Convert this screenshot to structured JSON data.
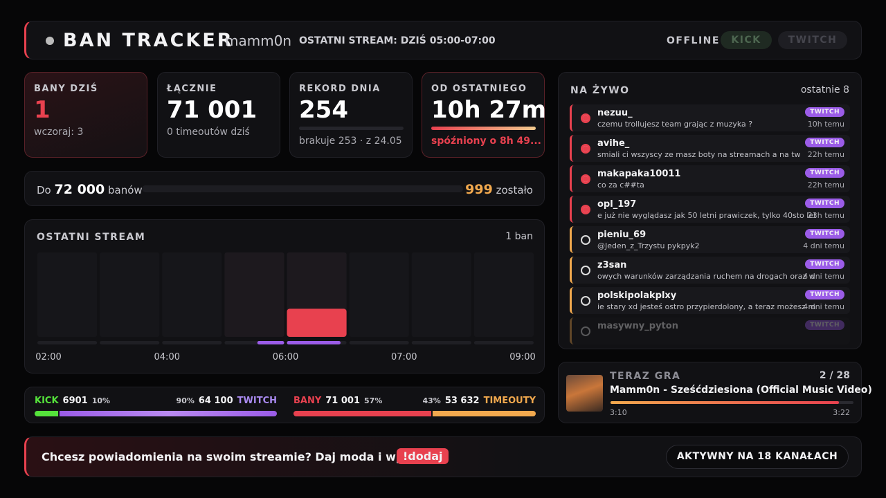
{
  "header": {
    "title": "BAN TRACKER",
    "channel": "mamm0n",
    "last_stream": "OSTATNI STREAM: DZIŚ 05:00-07:00",
    "status": "OFFLINE",
    "platforms": [
      "KICK",
      "TWITCH"
    ]
  },
  "stats": [
    {
      "label": "BANY DZIŚ",
      "value": "1",
      "sub": "wczoraj: 3"
    },
    {
      "label": "ŁĄCZNIE",
      "value": "71 001",
      "sub": "0 timeoutów dziś"
    },
    {
      "label": "REKORD DNIA",
      "value": "254",
      "sub": "brakuje 253 · z 24.05"
    },
    {
      "label": "OD OSTATNIEGO",
      "value": "10h 27m",
      "sub": "spóźniony o 8h 49..."
    }
  ],
  "goal": {
    "prefix": "Do",
    "target": "72 000",
    "unit": "banów",
    "remaining": "999",
    "remaining_label": "zostało"
  },
  "chart_data": {
    "type": "bar",
    "title": "OSTATNI STREAM",
    "summary": "1 ban",
    "values": [
      0,
      0,
      0,
      0,
      1,
      0,
      0,
      0
    ],
    "ylim": [
      0,
      3
    ],
    "x_labels": [
      "02:00",
      "04:00",
      "06:00",
      "07:00",
      "09:00"
    ],
    "color": "#e8414f"
  },
  "splits": [
    {
      "a_label": "KICK",
      "a_value": "6901",
      "a_pct": "10%",
      "b_pct": "90%",
      "b_value": "64 100",
      "b_label": "TWITCH"
    },
    {
      "a_label": "BANY",
      "a_value": "71 001",
      "a_pct": "57%",
      "b_pct": "43%",
      "b_value": "53 632",
      "b_label": "TIMEOUTY"
    }
  ],
  "feed": {
    "title": "NA ŻYWO",
    "subtitle": "ostatnie 8",
    "items": [
      {
        "kind": "ban",
        "user": "nezuu_",
        "message": "czemu trollujesz team grając z muzyka ?",
        "platform": "TWITCH",
        "time": "10h temu"
      },
      {
        "kind": "ban",
        "user": "avihe_",
        "message": "smiali ci wszyscy ze masz boty na streamach a na tw",
        "platform": "TWITCH",
        "time": "22h temu"
      },
      {
        "kind": "ban",
        "user": "makapaka10011",
        "message": "co za c##ta",
        "platform": "TWITCH",
        "time": "22h temu"
      },
      {
        "kind": "ban",
        "user": "opl_197",
        "message": "e już nie wyglądasz jak 50 letni prawiczek, tylko 40sto let",
        "platform": "TWITCH",
        "time": "23h temu"
      },
      {
        "kind": "timeout",
        "user": "pieniu_69",
        "message": "@Jeden_z_Trzystu pykpyk2",
        "platform": "TWITCH",
        "time": "4 dni temu"
      },
      {
        "kind": "timeout",
        "user": "z3san",
        "message": "owych warunków zarządzania ruchem na drogach oraz w",
        "platform": "TWITCH",
        "time": "4 dni temu"
      },
      {
        "kind": "timeout",
        "user": "polskipolakplxy",
        "message": "ie stary xd jesteś ostro przypierdolony, a teraz możesz m",
        "platform": "TWITCH",
        "time": "4 dni temu"
      },
      {
        "kind": "timeout",
        "user": "masywny_pyton",
        "platform": "TWITCH"
      }
    ]
  },
  "now_playing": {
    "label": "TERAZ GRA",
    "position": "2 / 28",
    "title": "Mamm0n - Sześćdziesiona (Official Music Video)",
    "elapsed": "3:10",
    "duration": "3:22"
  },
  "footer": {
    "message": "Chcesz powiadomienia na swoim streamie? Daj moda i wpisz",
    "command": "!dodaj",
    "channels": "AKTYWNY NA 18 KANAŁACH"
  }
}
